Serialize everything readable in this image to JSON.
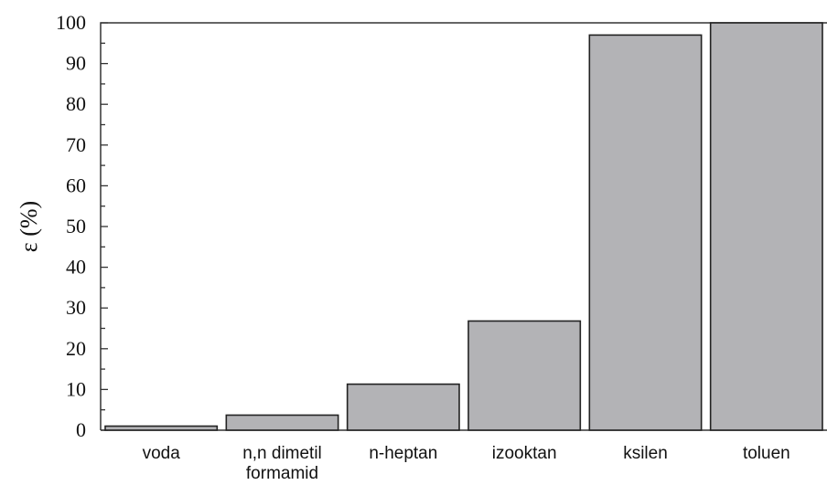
{
  "chart_data": {
    "type": "bar",
    "categories": [
      "voda",
      "n,n dimetil\nformamid",
      "n-heptan",
      "izooktan",
      "ksilen",
      "toluen"
    ],
    "values": [
      1,
      3.7,
      11.3,
      26.8,
      97,
      100
    ],
    "ylabel": "ε (%)",
    "xlabel": "",
    "ylim": [
      0,
      100
    ],
    "yticks": [
      0,
      10,
      20,
      30,
      40,
      50,
      60,
      70,
      80,
      90,
      100
    ],
    "grid": false,
    "bar_color": "#b3b3b6"
  }
}
